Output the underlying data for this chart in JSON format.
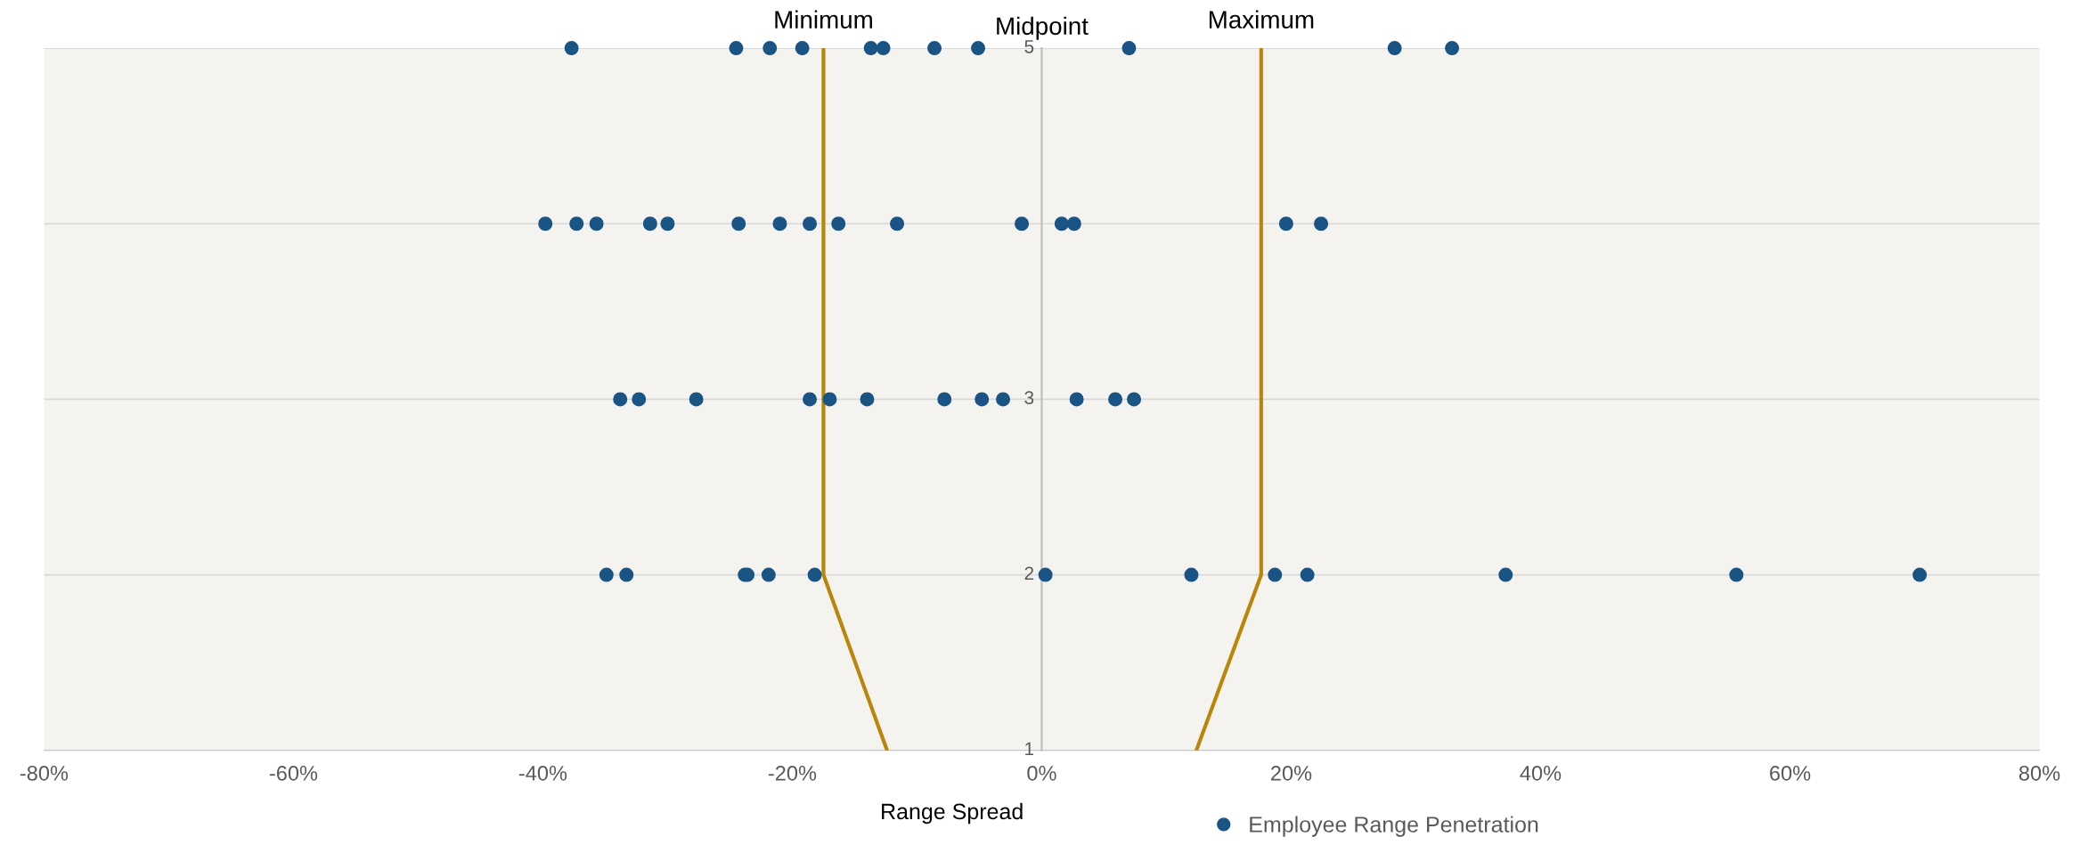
{
  "chart_data": {
    "type": "scatter",
    "xlabel": "Range Spread",
    "legend": "bottom",
    "grid": "y",
    "marker": "circle",
    "xlim": [
      -80,
      80
    ],
    "xticks": [
      {
        "value": -80,
        "label": "-80%"
      },
      {
        "value": -60,
        "label": "-60%"
      },
      {
        "value": -40,
        "label": "-40%"
      },
      {
        "value": -20,
        "label": "-20%"
      },
      {
        "value": 0,
        "label": "0%"
      },
      {
        "value": 20,
        "label": "20%"
      },
      {
        "value": 40,
        "label": "40%"
      },
      {
        "value": 60,
        "label": "60%"
      },
      {
        "value": 80,
        "label": "80%"
      }
    ],
    "ylim": [
      1,
      5
    ],
    "yticks": [
      1,
      2,
      3,
      {
        "value": 4,
        "label": null
      },
      5
    ],
    "ylabel": "Midpoint",
    "series": [
      {
        "name": "Employee Range Penetration",
        "color": "#1a5484",
        "x": [
          -37.7,
          -24.5,
          -21.8,
          -19.2,
          -13.7,
          -12.7,
          -8.6,
          -5.1,
          7.0,
          28.3,
          32.9,
          -39.8,
          -37.3,
          -35.7,
          -31.4,
          -30.0,
          -24.3,
          -21.0,
          -18.6,
          -16.3,
          -11.6,
          -1.6,
          1.6,
          2.6,
          19.6,
          22.4,
          -33.8,
          -32.3,
          -27.7,
          -18.6,
          -17.0,
          -14.0,
          -7.8,
          -4.8,
          -3.1,
          2.8,
          5.9,
          7.4,
          -34.9,
          -33.3,
          -23.8,
          -23.6,
          -21.9,
          -18.2,
          0.3,
          12.0,
          18.7,
          21.3,
          37.2,
          55.7,
          70.4
        ],
        "values": [
          5,
          5,
          5,
          5,
          5,
          5,
          5,
          5,
          5,
          5,
          5,
          4,
          4,
          4,
          4,
          4,
          4,
          4,
          4,
          4,
          4,
          4,
          4,
          4,
          4,
          4,
          3,
          3,
          3,
          3,
          3,
          3,
          3,
          3,
          3,
          3,
          3,
          3,
          2,
          2,
          2,
          2,
          2,
          2,
          2,
          2,
          2,
          2,
          2,
          2,
          2
        ]
      },
      {
        "name": "Minimum",
        "type": "line",
        "marker": "none",
        "color": "#b8860b",
        "x": [
          -12.4,
          -17.5,
          -17.5,
          -17.5,
          -17.5
        ],
        "values": [
          1,
          2,
          3,
          4,
          5
        ]
      },
      {
        "name": "Maximum",
        "type": "line",
        "marker": "none",
        "color": "#b8860b",
        "x": [
          12.4,
          17.6,
          17.6,
          17.6,
          17.6
        ],
        "values": [
          1,
          2,
          3,
          4,
          5
        ]
      }
    ]
  }
}
